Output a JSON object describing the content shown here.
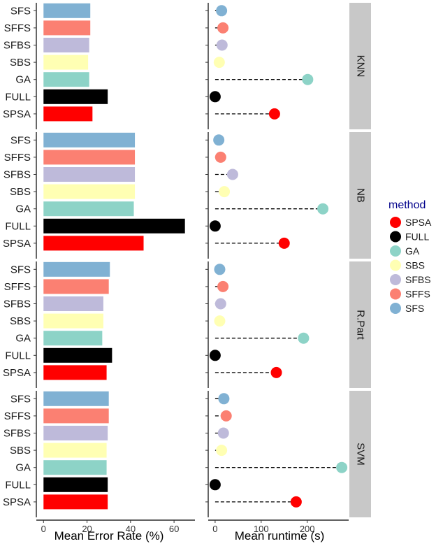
{
  "chart_data": {
    "type": "bar",
    "methods": [
      "SFS",
      "SFFS",
      "SFBS",
      "SBS",
      "GA",
      "FULL",
      "SPSA"
    ],
    "colors": {
      "SFS": "#80b1d3",
      "SFFS": "#fb8072",
      "SFBS": "#bebada",
      "SBS": "#ffffb3",
      "GA": "#8dd3c7",
      "FULL": "#000000",
      "SPSA": "#ff0000"
    },
    "facets": [
      {
        "label": "KNN",
        "error_rate": [
          21.5,
          21.5,
          21.0,
          20.5,
          21.0,
          29.5,
          22.5
        ],
        "runtime": [
          14,
          17,
          15,
          9,
          201,
          0,
          129
        ]
      },
      {
        "label": "NB",
        "error_rate": [
          42.0,
          42.0,
          42.0,
          42.0,
          41.5,
          65.0,
          46.0
        ],
        "runtime": [
          8,
          12,
          38,
          20,
          234,
          0,
          150
        ]
      },
      {
        "label": "R.Part",
        "error_rate": [
          30.5,
          30.0,
          27.5,
          27.5,
          27.0,
          31.5,
          29.0
        ],
        "runtime": [
          10,
          17,
          12,
          10,
          192,
          0,
          133
        ]
      },
      {
        "label": "SVM",
        "error_rate": [
          30.0,
          30.0,
          29.5,
          29.0,
          29.0,
          29.5,
          29.5
        ],
        "runtime": [
          19,
          24,
          18,
          14,
          275,
          0,
          176
        ]
      }
    ],
    "left_panel": {
      "xlabel": "Mean Error Rate (%)",
      "xticks": [
        0,
        20,
        40,
        60
      ],
      "xlim": [
        -3.3,
        69.6
      ]
    },
    "right_panel": {
      "type": "lollipop",
      "xlabel": "Mean runtime (s)",
      "xticks": [
        0,
        100,
        200
      ],
      "xlim": [
        -15,
        290
      ]
    },
    "legend": {
      "title": "method",
      "entries": [
        "SPSA",
        "FULL",
        "GA",
        "SBS",
        "SFBS",
        "SFFS",
        "SFS"
      ],
      "placement": "right"
    }
  }
}
